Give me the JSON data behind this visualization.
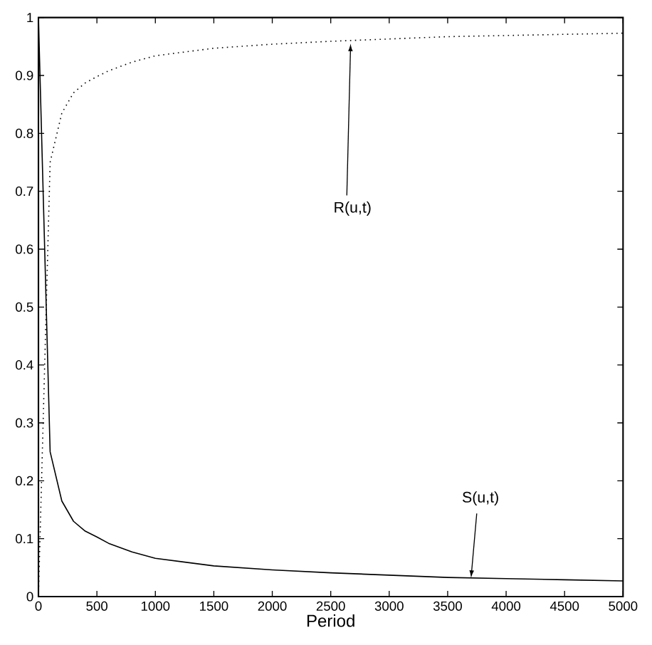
{
  "chart_data": {
    "type": "line",
    "xlabel": "Period",
    "x": [
      0,
      100,
      200,
      300,
      400,
      500,
      600,
      800,
      1000,
      1500,
      2000,
      2500,
      3000,
      3500,
      4000,
      4500,
      5000
    ],
    "series": [
      {
        "color": "#000000",
        "line_style": "solid",
        "values": [
          1,
          0.25,
          0.165,
          0.13,
          0.113,
          0.103,
          0.092,
          0.077,
          0.066,
          0.053,
          0.046,
          0.041,
          0.037,
          0.033,
          0.031,
          0.029,
          0.027
        ]
      },
      {
        "color": "#000000",
        "line_style": "dotted",
        "values": [
          0,
          0.75,
          0.835,
          0.87,
          0.887,
          0.898,
          0.908,
          0.923,
          0.934,
          0.947,
          0.954,
          0.959,
          0.963,
          0.967,
          0.969,
          0.971,
          0.973
        ]
      }
    ],
    "annotations": [
      {
        "text": "R(u,t)",
        "x": 2670,
        "y": 0.955
      },
      {
        "text": "S(u,t)",
        "x": 3700,
        "y": 0.032
      }
    ],
    "xlim": [
      0,
      5000
    ],
    "ylim": [
      0,
      1
    ],
    "xticks": [
      0,
      500,
      1000,
      1500,
      2000,
      2500,
      3000,
      3500,
      4000,
      4500,
      5000
    ],
    "yticks": [
      0,
      0.1,
      0.2,
      0.3,
      0.4,
      0.5,
      0.6,
      0.7,
      0.8,
      0.9,
      1
    ],
    "grid": false,
    "marker": "none"
  }
}
